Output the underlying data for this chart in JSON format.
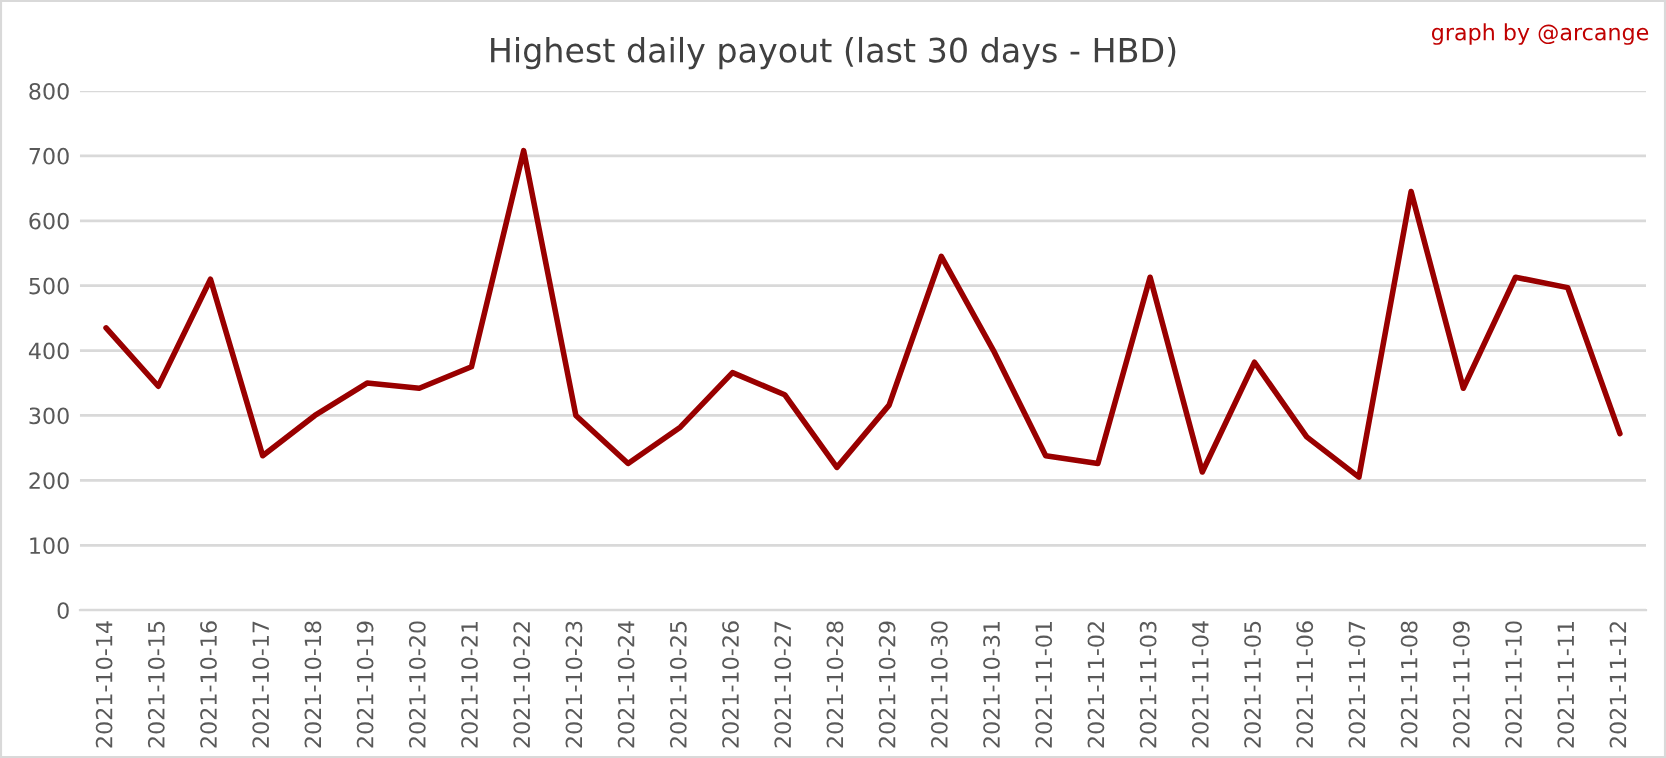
{
  "chart_data": {
    "type": "line",
    "title": "Highest daily payout (last 30 days - HBD)",
    "annotations": [
      "graph by @arcange"
    ],
    "categories": [
      "2021-10-14",
      "2021-10-15",
      "2021-10-16",
      "2021-10-17",
      "2021-10-18",
      "2021-10-19",
      "2021-10-20",
      "2021-10-21",
      "2021-10-22",
      "2021-10-23",
      "2021-10-24",
      "2021-10-25",
      "2021-10-26",
      "2021-10-27",
      "2021-10-28",
      "2021-10-29",
      "2021-10-30",
      "2021-10-31",
      "2021-11-01",
      "2021-11-02",
      "2021-11-03",
      "2021-11-04",
      "2021-11-05",
      "2021-11-06",
      "2021-11-07",
      "2021-11-08",
      "2021-11-09",
      "2021-11-10",
      "2021-11-11",
      "2021-11-12"
    ],
    "series": [
      {
        "color": "#990000",
        "values": [
          435,
          345,
          510,
          238,
          300,
          350,
          342,
          375,
          708,
          300,
          226,
          282,
          366,
          332,
          220,
          316,
          545,
          400,
          238,
          226,
          513,
          213,
          382,
          267,
          205,
          645,
          342,
          513,
          497,
          272
        ]
      }
    ],
    "ylim": [
      0,
      800
    ],
    "yticks": [
      0,
      100,
      200,
      300,
      400,
      500,
      600,
      700,
      800
    ],
    "grid": "y",
    "legend": false,
    "marker": "none",
    "line_style": "solid"
  }
}
